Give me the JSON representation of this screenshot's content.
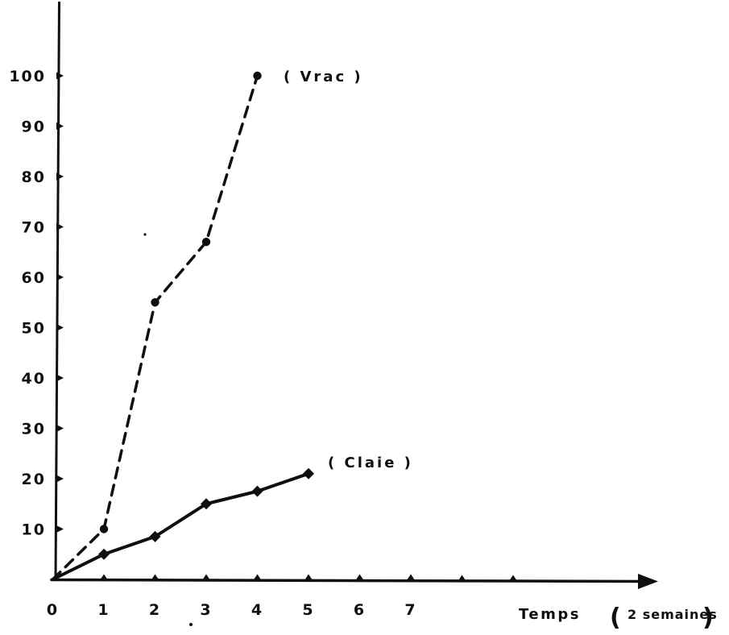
{
  "figure": {
    "background": "#ffffff",
    "ink_color": "#0f0f0f",
    "style": "hand-drawn scanned ink chart"
  },
  "chart_data": {
    "type": "line",
    "title": "",
    "xlabel": "Temps",
    "xlabel_unit_open": "(",
    "xlabel_unit": "2 semaines",
    "xlabel_unit_close": ")",
    "ylabel": "",
    "xlim": [
      0,
      11.5
    ],
    "ylim": [
      0,
      115
    ],
    "grid": false,
    "legend_position": "inline-annotations",
    "x_ticks": [
      0,
      1,
      2,
      3,
      4,
      5,
      6,
      7
    ],
    "x_tick_labels": [
      "0",
      "1",
      "2",
      "3",
      "4",
      "5",
      "6",
      "7"
    ],
    "unlabeled_x_ticks": [
      8,
      9
    ],
    "y_ticks": [
      10,
      20,
      30,
      40,
      50,
      60,
      70,
      80,
      90,
      100
    ],
    "y_tick_labels": [
      "10",
      "20",
      "30",
      "40",
      "50",
      "60",
      "70",
      "80",
      "90",
      "100"
    ],
    "series": [
      {
        "name": "Vrac",
        "label": "( Vrac )",
        "line_style": "dashed",
        "marker": "circle",
        "x": [
          0,
          1,
          2,
          3,
          4
        ],
        "values": [
          0,
          10,
          55,
          67,
          100
        ]
      },
      {
        "name": "Claie",
        "label": "( Claie )",
        "line_style": "solid",
        "marker": "diamond",
        "x": [
          0,
          1,
          2,
          3,
          4,
          5
        ],
        "values": [
          0,
          5,
          8.5,
          15,
          17.5,
          21
        ]
      }
    ]
  }
}
